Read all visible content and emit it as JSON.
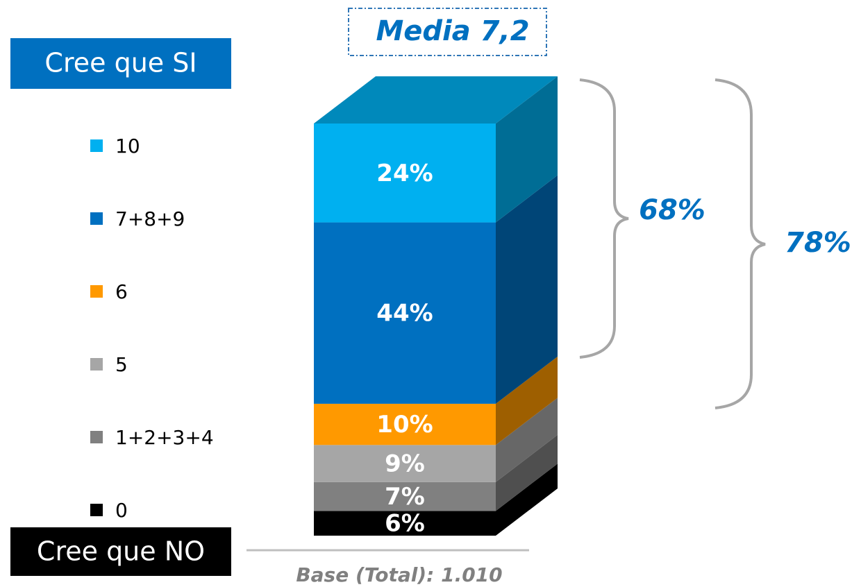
{
  "chart_data": {
    "type": "stacked-bar-3d",
    "title": "Media 7,2",
    "annotations": {
      "top_group": "Cree que SI",
      "bottom_group": "Cree que NO",
      "bracket_inner": "68%",
      "bracket_outer": "78%",
      "base": "Base (Total): 1.010"
    },
    "series": [
      {
        "name": "0",
        "color": "#000000",
        "values": [
          6
        ],
        "value_labels": [
          "6%"
        ]
      },
      {
        "name": "1+2+3+4",
        "color": "#808080",
        "values": [
          7
        ],
        "value_labels": [
          "7%"
        ]
      },
      {
        "name": "5",
        "color": "#a6a6a6",
        "values": [
          9
        ],
        "value_labels": [
          "9%"
        ]
      },
      {
        "name": "6",
        "color": "#ff9900",
        "values": [
          10
        ],
        "value_labels": [
          "10%"
        ]
      },
      {
        "name": "7+8+9",
        "color": "#0070c0",
        "values": [
          44
        ],
        "value_labels": [
          "44%"
        ]
      },
      {
        "name": "10",
        "color": "#00b0f0",
        "values": [
          24
        ],
        "value_labels": [
          "24%"
        ]
      }
    ]
  }
}
